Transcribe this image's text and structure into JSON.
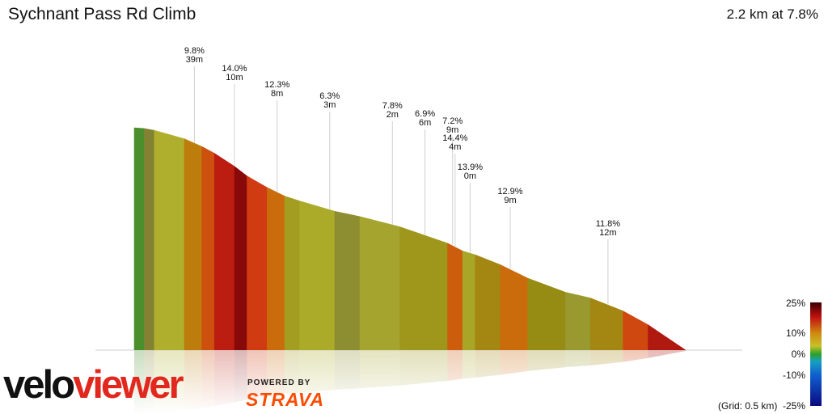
{
  "title": "Sychnant Pass Rd Climb",
  "summary": "2.2 km at 7.8%",
  "branding": {
    "velo": "velo",
    "viewer": "viewer",
    "powered_by": "POWERED BY",
    "strava": "STRAVA"
  },
  "gradient_scale": {
    "labels": [
      "25%",
      "10%",
      "0%",
      "-10%",
      "-25%"
    ],
    "grid_note": "(Grid: 0.5 km)"
  },
  "colors": {
    "viewer_red": "#e2281e",
    "strava_orange": "#fc4c02"
  },
  "chart_data": {
    "type": "area",
    "title": "Sychnant Pass Rd Climb",
    "xlabel": "",
    "ylabel": "",
    "distance_km": 2.2,
    "avg_gradient_pct": 7.8,
    "grid_km": 0.5,
    "segments": [
      {
        "d0": 0.0,
        "d1": 0.04,
        "grade": 1.5
      },
      {
        "d0": 0.04,
        "d1": 0.08,
        "grade": 4.0
      },
      {
        "d0": 0.08,
        "d1": 0.2,
        "grade": 6.0
      },
      {
        "d0": 0.2,
        "d1": 0.27,
        "grade": 9.5
      },
      {
        "d0": 0.27,
        "d1": 0.32,
        "grade": 11.5
      },
      {
        "d0": 0.32,
        "d1": 0.4,
        "grade": 14.0
      },
      {
        "d0": 0.4,
        "d1": 0.45,
        "grade": 16.5
      },
      {
        "d0": 0.45,
        "d1": 0.53,
        "grade": 12.3
      },
      {
        "d0": 0.53,
        "d1": 0.6,
        "grade": 10.5
      },
      {
        "d0": 0.6,
        "d1": 0.66,
        "grade": 7.0
      },
      {
        "d0": 0.66,
        "d1": 0.8,
        "grade": 6.3
      },
      {
        "d0": 0.8,
        "d1": 0.9,
        "grade": 4.5
      },
      {
        "d0": 0.9,
        "d1": 1.06,
        "grade": 5.5
      },
      {
        "d0": 1.06,
        "d1": 1.25,
        "grade": 7.4
      },
      {
        "d0": 1.25,
        "d1": 1.31,
        "grade": 11.0
      },
      {
        "d0": 1.31,
        "d1": 1.36,
        "grade": 6.5
      },
      {
        "d0": 1.36,
        "d1": 1.46,
        "grade": 8.5
      },
      {
        "d0": 1.46,
        "d1": 1.57,
        "grade": 10.5
      },
      {
        "d0": 1.57,
        "d1": 1.72,
        "grade": 8.0
      },
      {
        "d0": 1.72,
        "d1": 1.82,
        "grade": 5.0
      },
      {
        "d0": 1.82,
        "d1": 1.95,
        "grade": 8.5
      },
      {
        "d0": 1.95,
        "d1": 2.05,
        "grade": 11.8
      },
      {
        "d0": 2.05,
        "d1": 2.2,
        "grade": 14.5
      }
    ],
    "annotations": [
      {
        "d": 0.24,
        "grade": "9.8%",
        "length": "39m"
      },
      {
        "d": 0.4,
        "grade": "14.0%",
        "length": "10m"
      },
      {
        "d": 0.57,
        "grade": "12.3%",
        "length": "8m"
      },
      {
        "d": 0.78,
        "grade": "6.3%",
        "length": "3m"
      },
      {
        "d": 1.03,
        "grade": "7.8%",
        "length": "2m"
      },
      {
        "d": 1.16,
        "grade": "6.9%",
        "length": "6m"
      },
      {
        "d": 1.27,
        "grade": "7.2%",
        "length": "9m"
      },
      {
        "d": 1.28,
        "grade": "14.4%",
        "length": "4m"
      },
      {
        "d": 1.34,
        "grade": "13.9%",
        "length": "0m"
      },
      {
        "d": 1.5,
        "grade": "12.9%",
        "length": "9m"
      },
      {
        "d": 1.89,
        "grade": "11.8%",
        "length": "12m"
      }
    ]
  }
}
